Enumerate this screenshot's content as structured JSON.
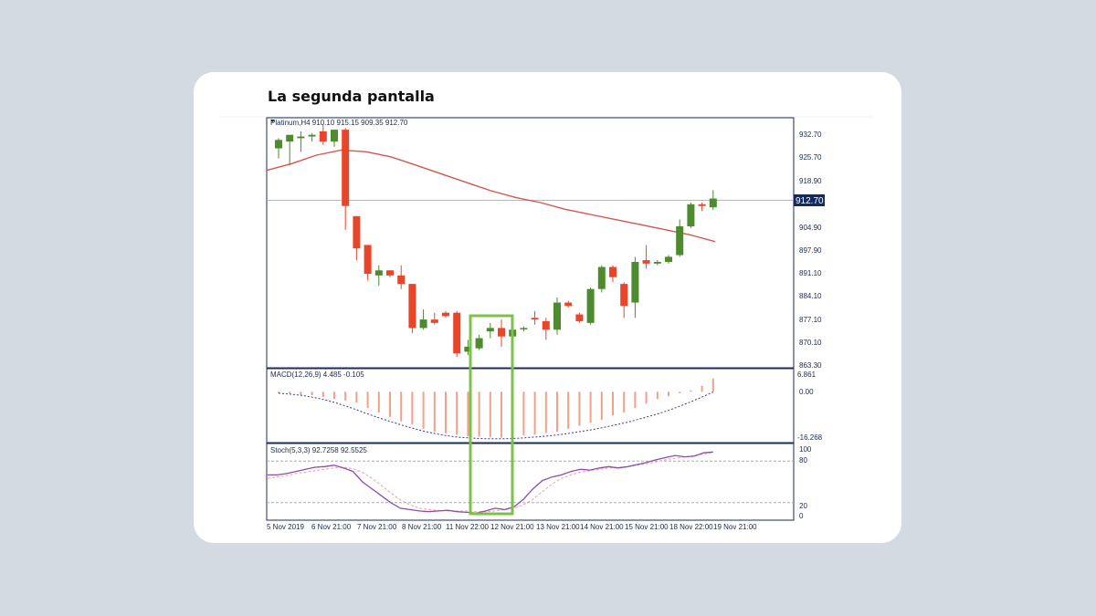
{
  "page": {
    "title": "La segunda pantalla"
  },
  "colors": {
    "background": "#d3dae2",
    "card": "#ffffff",
    "bull": "#4e8a2e",
    "bear": "#e8452a",
    "ma_line": "#d2574e",
    "frame": "#1b2b5a",
    "macd_hist": "#f2a088",
    "macd_signal": "#3c3c8c",
    "stoch_main": "#8a4fa8",
    "stoch_signal": "#f0a0a0",
    "highlight": "#7cc24a",
    "price_tag_bg": "#102a63"
  },
  "chart_data": [
    {
      "type": "candlestick",
      "header": "Platinum,H4  910.10 915.15 909.35 912.70",
      "y_ticks": [
        "932.70",
        "925.70",
        "918.90",
        "904.90",
        "897.90",
        "891.10",
        "884.10",
        "877.10",
        "870.10",
        "863.30"
      ],
      "ylim": [
        863.3,
        936.0
      ],
      "current_price": 912.7,
      "current_price_label": "912.70",
      "x_tick_labels": [
        "5 Nov 2019",
        "6 Nov 21:00",
        "7 Nov 21:00",
        "8 Nov 21:00",
        "11 Nov 22:00",
        "12 Nov 21:00",
        "13 Nov 21:00",
        "14 Nov 21:00",
        "15 Nov 21:00",
        "18 Nov 22:00",
        "19 Nov 21:00"
      ],
      "candles": [
        {
          "o": 927.5,
          "h": 930.5,
          "l": 924.5,
          "c": 930.0
        },
        {
          "o": 929.5,
          "h": 931.0,
          "l": 922.5,
          "c": 931.5
        },
        {
          "o": 930.5,
          "h": 932.5,
          "l": 926.5,
          "c": 931.0
        },
        {
          "o": 931.0,
          "h": 932.0,
          "l": 929.5,
          "c": 931.5
        },
        {
          "o": 932.5,
          "h": 934.5,
          "l": 928.5,
          "c": 929.5
        },
        {
          "o": 929.5,
          "h": 933.0,
          "l": 928.0,
          "c": 933.0
        },
        {
          "o": 933.0,
          "h": 933.5,
          "l": 903.5,
          "c": 910.5
        },
        {
          "o": 907.5,
          "h": 907.5,
          "l": 894.5,
          "c": 898.0
        },
        {
          "o": 899.0,
          "h": 899.0,
          "l": 888.5,
          "c": 890.5
        },
        {
          "o": 890.0,
          "h": 893.0,
          "l": 887.0,
          "c": 891.5
        },
        {
          "o": 891.5,
          "h": 891.5,
          "l": 889.5,
          "c": 890.0
        },
        {
          "o": 890.0,
          "h": 893.0,
          "l": 886.0,
          "c": 887.5
        },
        {
          "o": 887.5,
          "h": 887.5,
          "l": 873.0,
          "c": 874.5
        },
        {
          "o": 874.5,
          "h": 880.0,
          "l": 874.0,
          "c": 877.0
        },
        {
          "o": 877.0,
          "h": 879.0,
          "l": 875.5,
          "c": 876.0
        },
        {
          "o": 879.0,
          "h": 879.5,
          "l": 877.5,
          "c": 878.0
        },
        {
          "o": 879.0,
          "h": 879.5,
          "l": 866.0,
          "c": 867.0
        },
        {
          "o": 867.5,
          "h": 871.0,
          "l": 866.5,
          "c": 869.0
        },
        {
          "o": 868.5,
          "h": 872.5,
          "l": 868.0,
          "c": 871.5
        },
        {
          "o": 873.5,
          "h": 876.0,
          "l": 871.5,
          "c": 874.5
        },
        {
          "o": 874.5,
          "h": 877.0,
          "l": 869.0,
          "c": 872.0
        },
        {
          "o": 872.0,
          "h": 876.0,
          "l": 871.5,
          "c": 874.0
        },
        {
          "o": 874.5,
          "h": 875.0,
          "l": 873.5,
          "c": 874.5
        },
        {
          "o": 877.5,
          "h": 879.5,
          "l": 875.5,
          "c": 877.0
        },
        {
          "o": 876.5,
          "h": 877.5,
          "l": 871.0,
          "c": 874.0
        },
        {
          "o": 874.0,
          "h": 883.5,
          "l": 872.5,
          "c": 882.0
        },
        {
          "o": 882.0,
          "h": 882.5,
          "l": 880.5,
          "c": 881.0
        },
        {
          "o": 878.5,
          "h": 879.0,
          "l": 876.0,
          "c": 876.5
        },
        {
          "o": 876.0,
          "h": 886.5,
          "l": 875.5,
          "c": 886.0
        },
        {
          "o": 886.0,
          "h": 893.0,
          "l": 885.0,
          "c": 892.5
        },
        {
          "o": 892.5,
          "h": 893.0,
          "l": 888.0,
          "c": 889.5
        },
        {
          "o": 887.5,
          "h": 888.0,
          "l": 877.5,
          "c": 881.0
        },
        {
          "o": 882.0,
          "h": 895.5,
          "l": 877.5,
          "c": 894.0
        },
        {
          "o": 894.5,
          "h": 899.0,
          "l": 892.0,
          "c": 893.5
        },
        {
          "o": 893.5,
          "h": 894.5,
          "l": 893.0,
          "c": 894.0
        },
        {
          "o": 894.0,
          "h": 896.0,
          "l": 893.5,
          "c": 895.5
        },
        {
          "o": 896.0,
          "h": 906.5,
          "l": 895.5,
          "c": 904.5
        },
        {
          "o": 904.5,
          "h": 911.5,
          "l": 904.0,
          "c": 911.0
        },
        {
          "o": 911.0,
          "h": 911.5,
          "l": 909.0,
          "c": 910.5
        },
        {
          "o": 910.1,
          "h": 915.15,
          "l": 909.35,
          "c": 912.7
        }
      ],
      "ma": [
        [
          0,
          921.0
        ],
        [
          3,
          923.0
        ],
        [
          6,
          925.5
        ],
        [
          9,
          927.0
        ],
        [
          12,
          926.5
        ],
        [
          15,
          925.0
        ],
        [
          18,
          922.5
        ],
        [
          21,
          920.0
        ],
        [
          24,
          917.5
        ],
        [
          27,
          915.0
        ],
        [
          30,
          913.0
        ],
        [
          33,
          911.5
        ],
        [
          36,
          909.5
        ],
        [
          39,
          908.0
        ],
        [
          42,
          906.5
        ],
        [
          45,
          905.0
        ],
        [
          48,
          903.5
        ],
        [
          51,
          902.0
        ],
        [
          54,
          900.0
        ]
      ]
    },
    {
      "type": "bar",
      "label": "MACD(12,26,9) 4.485 -0.105",
      "y_ticks": [
        "6.861",
        "0.00",
        "-16.268"
      ],
      "ylim": [
        -16.268,
        6.861
      ],
      "histogram": [
        -0.5,
        -0.6,
        -1.0,
        -1.2,
        -1.8,
        -2.5,
        -3.0,
        -3.7,
        -5.5,
        -7.0,
        -8.5,
        -10.0,
        -11.0,
        -12.5,
        -13.5,
        -14.0,
        -14.5,
        -15.0,
        -15.2,
        -15.3,
        -15.5,
        -15.3,
        -14.8,
        -14.5,
        -14.0,
        -13.5,
        -12.5,
        -11.5,
        -10.5,
        -9.5,
        -8.0,
        -7.0,
        -5.5,
        -4.0,
        -2.5,
        -1.5,
        -0.5,
        0.5,
        2.0,
        4.485
      ],
      "signal": [
        -0.5,
        -0.8,
        -1.2,
        -1.8,
        -2.6,
        -3.6,
        -4.8,
        -6.1,
        -7.5,
        -8.8,
        -10.0,
        -11.2,
        -12.3,
        -13.3,
        -14.1,
        -14.8,
        -15.3,
        -15.6,
        -15.8,
        -15.9,
        -15.9,
        -15.8,
        -15.6,
        -15.3,
        -15.0,
        -14.6,
        -14.1,
        -13.5,
        -12.9,
        -12.2,
        -11.4,
        -10.6,
        -9.6,
        -8.6,
        -7.5,
        -6.3,
        -4.9,
        -3.4,
        -1.8,
        -0.105
      ]
    },
    {
      "type": "line",
      "label": "Stoch(5,3,3) 92.7258 92.5525",
      "y_ticks": [
        "100",
        "80",
        "20",
        "0"
      ],
      "ylim": [
        0,
        100
      ],
      "levels": [
        80,
        20
      ],
      "series": [
        {
          "values": [
            60,
            60,
            62,
            65,
            68,
            71,
            72,
            74,
            70,
            65,
            50,
            40,
            30,
            20,
            12,
            10,
            8,
            7,
            8,
            9,
            7,
            6,
            5,
            8,
            12,
            10,
            14,
            25,
            40,
            52,
            57,
            60,
            65,
            68,
            67,
            70,
            72,
            70,
            72,
            75,
            78,
            82,
            85,
            88,
            86,
            87,
            92,
            93
          ]
        },
        {
          "values": [
            55,
            57,
            59,
            62,
            64,
            66,
            68,
            70,
            71,
            69,
            64,
            55,
            45,
            34,
            24,
            17,
            12,
            10,
            9,
            8,
            8,
            8,
            7,
            7,
            8,
            10,
            12,
            17,
            25,
            36,
            47,
            55,
            60,
            64,
            66,
            68,
            70,
            71,
            72,
            74,
            76,
            79,
            82,
            84,
            86,
            88,
            90,
            92.5
          ]
        }
      ]
    }
  ]
}
